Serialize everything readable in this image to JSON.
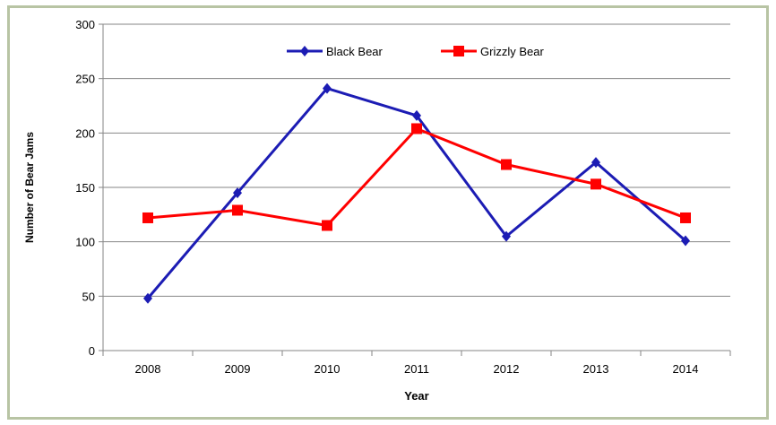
{
  "chart_data": {
    "type": "line",
    "title": "",
    "xlabel": "Year",
    "ylabel": "Number of Bear Jams",
    "categories": [
      "2008",
      "2009",
      "2010",
      "2011",
      "2012",
      "2013",
      "2014"
    ],
    "ylim": [
      0,
      300
    ],
    "yticks": [
      0,
      50,
      100,
      150,
      200,
      250,
      300
    ],
    "grid": true,
    "legend_position": "top",
    "series": [
      {
        "name": "Black Bear",
        "color": "#1c1cb4",
        "marker": "diamond",
        "values": [
          48,
          145,
          241,
          216,
          105,
          173,
          101
        ]
      },
      {
        "name": "Grizzly Bear",
        "color": "#ff0000",
        "marker": "square",
        "values": [
          122,
          129,
          115,
          204,
          171,
          153,
          122
        ]
      }
    ]
  }
}
